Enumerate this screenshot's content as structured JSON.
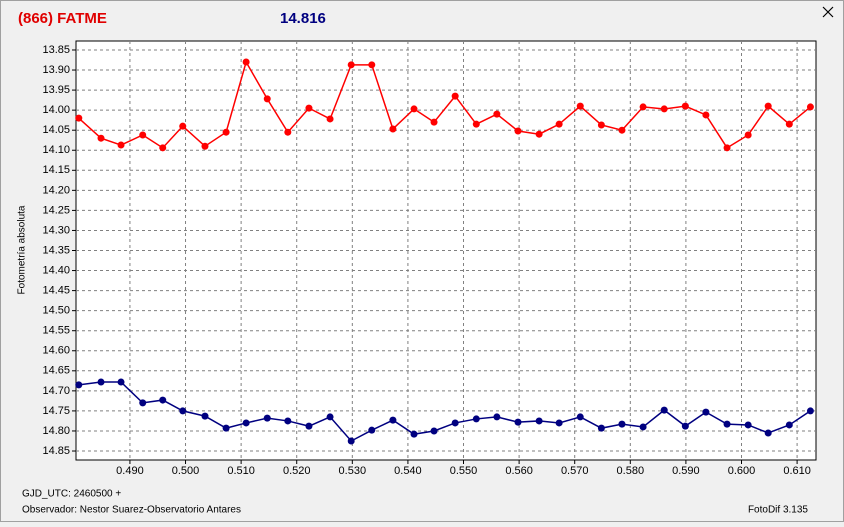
{
  "chart_data": {
    "type": "line",
    "title": "(866) FATME",
    "subtitle": "14.816",
    "y_label": "Fotometría absoluta",
    "x_label": "GJD_UTC: 2460500 +",
    "footer_left": "Observador: Nestor Suarez-Observatorio Antares",
    "footer_right": "FotoDif 3.135",
    "y_inverted": true,
    "grid": true,
    "xlim": [
      0.4803,
      0.6134
    ],
    "ylim": [
      13.8276,
      14.8724
    ],
    "xticks": [
      {
        "value": 0.49,
        "label": "0.490"
      },
      {
        "value": 0.5,
        "label": "0.500"
      },
      {
        "value": 0.51,
        "label": "0.510"
      },
      {
        "value": 0.52,
        "label": "0.520"
      },
      {
        "value": 0.53,
        "label": "0.530"
      },
      {
        "value": 0.54,
        "label": "0.540"
      },
      {
        "value": 0.55,
        "label": "0.550"
      },
      {
        "value": 0.56,
        "label": "0.560"
      },
      {
        "value": 0.57,
        "label": "0.570"
      },
      {
        "value": 0.58,
        "label": "0.580"
      },
      {
        "value": 0.59,
        "label": "0.590"
      },
      {
        "value": 0.6,
        "label": "0.600"
      },
      {
        "value": 0.61,
        "label": "0.610"
      }
    ],
    "yticks": [
      13.85,
      {
        "value": 13.9,
        "label": "13.90"
      },
      13.95,
      {
        "value": 14,
        "label": "14.00"
      },
      14.05,
      {
        "value": 14.1,
        "label": "14.10"
      },
      14.15,
      {
        "value": 14.2,
        "label": "14.20"
      },
      14.25,
      {
        "value": 14.3,
        "label": "14.30"
      },
      14.35,
      {
        "value": 14.4,
        "label": "14.40"
      },
      14.45,
      {
        "value": 14.5,
        "label": "14.50"
      },
      14.55,
      {
        "value": 14.6,
        "label": "14.60"
      },
      14.65,
      {
        "value": 14.7,
        "label": "14.70"
      },
      14.75,
      {
        "value": 14.8,
        "label": "14.80"
      },
      14.85
    ],
    "x": [
      0.4808,
      0.4848,
      0.4884,
      0.4923,
      0.4959,
      0.4995,
      0.5035,
      0.5073,
      0.5109,
      0.5147,
      0.5184,
      0.5222,
      0.526,
      0.5298,
      0.5335,
      0.5373,
      0.5411,
      0.5447,
      0.5485,
      0.5523,
      0.556,
      0.5598,
      0.5636,
      0.5672,
      0.571,
      0.5748,
      0.5785,
      0.5823,
      0.5861,
      0.5899,
      0.5936,
      0.5974,
      0.6012,
      0.6048,
      0.6086,
      0.6124
    ],
    "series": [
      {
        "color": "#ff0000",
        "values": [
          14.02,
          14.07,
          14.087,
          14.062,
          14.094,
          14.04,
          14.09,
          14.055,
          13.88,
          13.972,
          14.055,
          13.995,
          14.022,
          13.887,
          13.887,
          14.047,
          13.997,
          14.03,
          13.965,
          14.035,
          14.01,
          14.052,
          14.06,
          14.035,
          13.99,
          14.037,
          14.05,
          13.992,
          13.997,
          13.99,
          14.012,
          14.094,
          14.062,
          13.99,
          14.035,
          13.992
        ]
      },
      {
        "color": "#000080",
        "values": [
          14.685,
          14.678,
          14.678,
          14.73,
          14.723,
          14.75,
          14.763,
          14.793,
          14.78,
          14.768,
          14.775,
          14.788,
          14.765,
          14.825,
          14.798,
          14.773,
          14.808,
          14.8,
          14.78,
          14.77,
          14.765,
          14.778,
          14.775,
          14.78,
          14.765,
          14.793,
          14.783,
          14.79,
          14.748,
          14.788,
          14.753,
          14.783,
          14.785,
          14.805,
          14.785,
          14.75
        ]
      }
    ]
  }
}
